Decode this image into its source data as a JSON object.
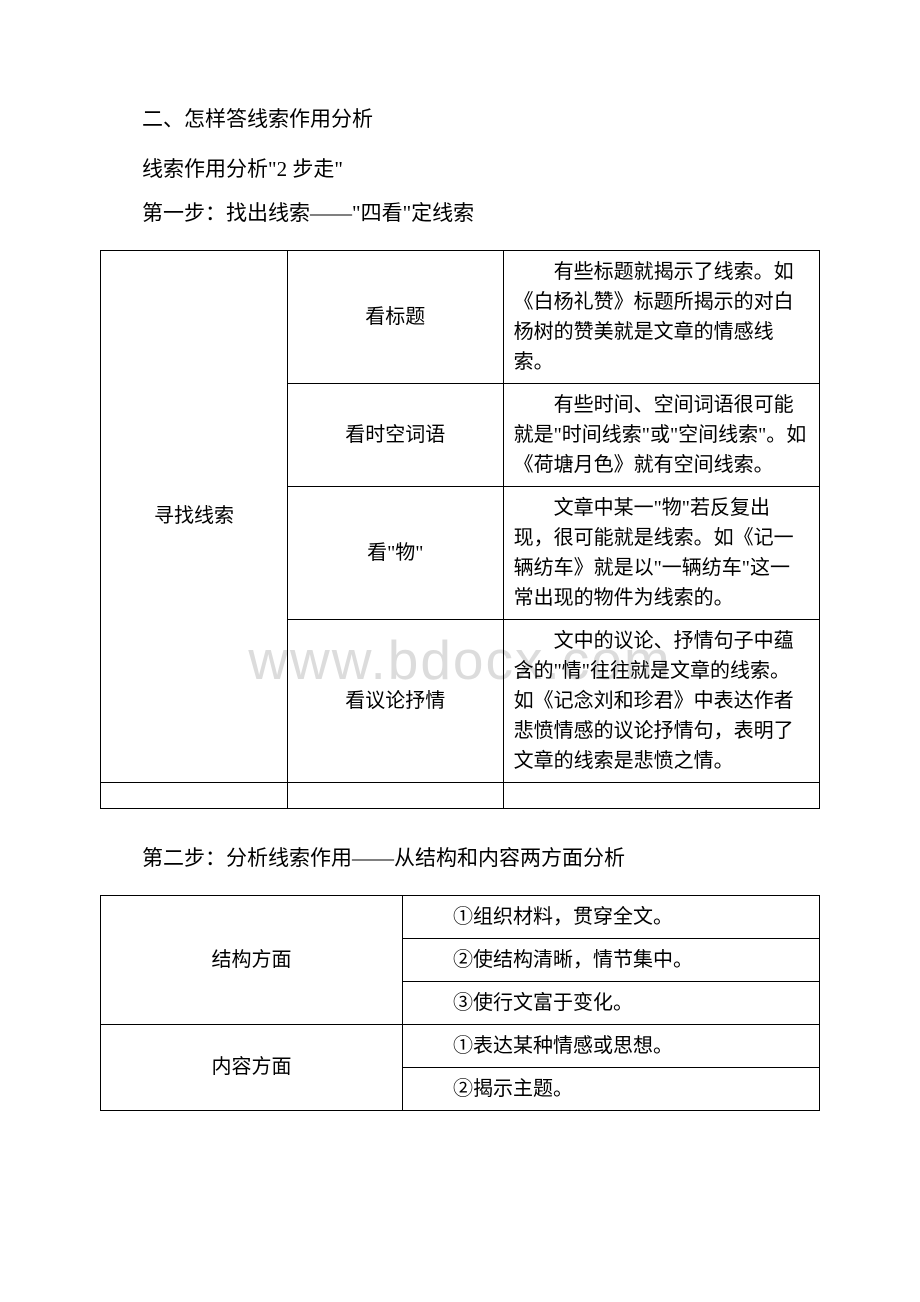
{
  "watermark": "www.bdocx.com",
  "section_title": "二、怎样答线索作用分析",
  "intro_line": "线索作用分析\"2 步走\"",
  "step1_title": "第一步：找出线索——\"四看\"定线索",
  "table1": {
    "row_label": "寻找线索",
    "rows": [
      {
        "method": "看标题",
        "desc": "有些标题就揭示了线索。如《白杨礼赞》标题所揭示的对白杨树的赞美就是文章的情感线索。"
      },
      {
        "method": "看时空词语",
        "desc": "有些时间、空间词语很可能就是\"时间线索\"或\"空间线索\"。如《荷塘月色》就有空间线索。"
      },
      {
        "method": "看\"物\"",
        "desc": "文章中某一\"物\"若反复出现，很可能就是线索。如《记一辆纺车》就是以\"一辆纺车\"这一常出现的物件为线索的。"
      },
      {
        "method": "看议论抒情",
        "desc": "文中的议论、抒情句子中蕴含的\"情\"往往就是文章的线索。如《记念刘和珍君》中表达作者悲愤情感的议论抒情句，表明了文章的线索是悲愤之情。"
      }
    ]
  },
  "step2_title": "第二步：分析线索作用——从结构和内容两方面分析",
  "table2": {
    "group1": {
      "label": "结构方面",
      "items": [
        "①组织材料，贯穿全文。",
        "②使结构清晰，情节集中。",
        "③使行文富于变化。"
      ]
    },
    "group2": {
      "label": "内容方面",
      "items": [
        "①表达某种情感或思想。",
        "②揭示主题。"
      ]
    }
  }
}
